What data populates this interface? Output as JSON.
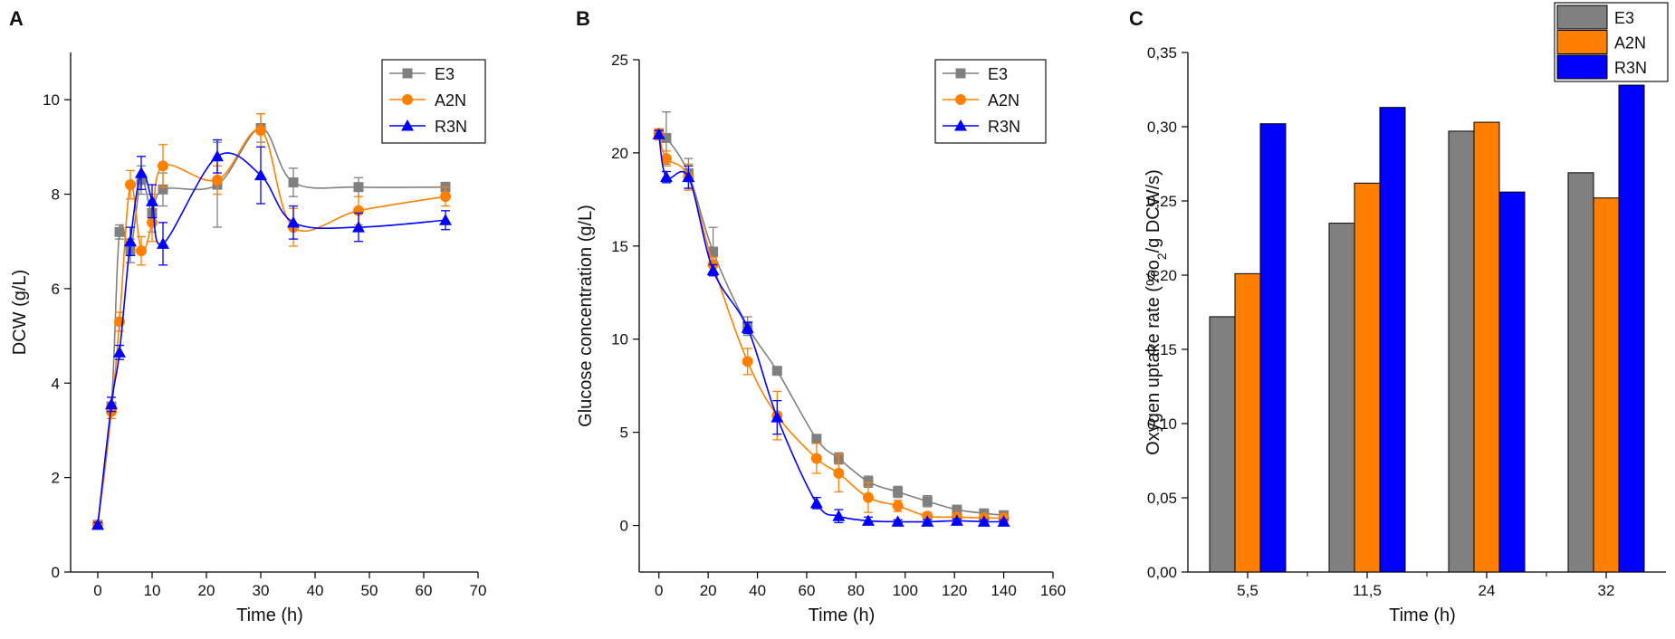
{
  "figure": {
    "panels": [
      "A",
      "B",
      "C"
    ]
  },
  "colors": {
    "E3": "#808080",
    "A2N": "#ff8000",
    "R3N": "#0000ff",
    "E3_bar": "#808080",
    "A2N_bar": "#ff8000",
    "R3N_bar": "#0000ff"
  },
  "chart_data": [
    {
      "panel": "A",
      "type": "line",
      "xlabel": "Time (h)",
      "ylabel": "DCW (g/L)",
      "xlim": [
        -5,
        70
      ],
      "ylim": [
        0,
        11
      ],
      "xticks": [
        "0",
        "10",
        "20",
        "30",
        "40",
        "50",
        "60",
        "70"
      ],
      "yticks": [
        "0",
        "2",
        "4",
        "6",
        "8",
        "10"
      ],
      "legend_position": "top-right",
      "series": [
        {
          "name": "E3",
          "marker": "square",
          "x": [
            0,
            2.5,
            4,
            6,
            8,
            10,
            12,
            22,
            30,
            36,
            48,
            64
          ],
          "y": [
            1.0,
            3.5,
            7.2,
            6.8,
            8.3,
            7.6,
            8.1,
            8.2,
            9.4,
            8.25,
            8.15,
            8.15
          ],
          "err": [
            0.05,
            0.1,
            0.15,
            0.25,
            0.3,
            0.4,
            0.35,
            0.9,
            0.3,
            0.3,
            0.2,
            0.1
          ]
        },
        {
          "name": "A2N",
          "marker": "circle",
          "x": [
            0,
            2.5,
            4,
            6,
            8,
            10,
            12,
            22,
            30,
            36,
            48,
            64
          ],
          "y": [
            1.0,
            3.4,
            5.3,
            8.2,
            6.8,
            7.4,
            8.6,
            8.3,
            9.35,
            7.3,
            7.65,
            7.95
          ],
          "err": [
            0.05,
            0.15,
            0.2,
            0.3,
            0.3,
            0.4,
            0.45,
            0.3,
            0.35,
            0.4,
            0.3,
            0.2
          ]
        },
        {
          "name": "R3N",
          "marker": "triangle",
          "x": [
            0,
            2.5,
            4,
            6,
            8,
            10,
            12,
            22,
            30,
            36,
            48,
            64
          ],
          "y": [
            1.0,
            3.55,
            4.65,
            7.0,
            8.45,
            7.85,
            6.95,
            8.8,
            8.4,
            7.4,
            7.3,
            7.45
          ],
          "err": [
            0.05,
            0.15,
            0.15,
            0.3,
            0.35,
            0.35,
            0.45,
            0.35,
            0.6,
            0.35,
            0.3,
            0.2
          ]
        }
      ]
    },
    {
      "panel": "B",
      "type": "line",
      "xlabel": "Time (h)",
      "ylabel": "Glucose concentration (g/L)",
      "xlim": [
        -8,
        160
      ],
      "ylim": [
        -2.5,
        25
      ],
      "xticks": [
        "0",
        "20",
        "40",
        "60",
        "80",
        "100",
        "120",
        "140",
        "160"
      ],
      "yticks": [
        "0",
        "5",
        "10",
        "15",
        "20",
        "25"
      ],
      "legend_position": "top-right",
      "series": [
        {
          "name": "E3",
          "marker": "square",
          "x": [
            0,
            3,
            12,
            22,
            36,
            48,
            64,
            73,
            85,
            97,
            109,
            121,
            132,
            140
          ],
          "y": [
            21.0,
            20.8,
            18.9,
            14.7,
            10.7,
            8.3,
            4.65,
            3.6,
            2.35,
            1.8,
            1.3,
            0.85,
            0.65,
            0.55
          ],
          "err": [
            0.3,
            1.4,
            0.8,
            1.3,
            0.5,
            0.2,
            0.2,
            0.3,
            0.3,
            0.3,
            0.3,
            0.2,
            0.15,
            0.1
          ]
        },
        {
          "name": "A2N",
          "marker": "circle",
          "x": [
            0,
            3,
            12,
            22,
            36,
            48,
            64,
            73,
            85,
            97,
            109,
            121,
            132,
            140
          ],
          "y": [
            21.0,
            19.7,
            18.7,
            14.0,
            8.8,
            5.9,
            3.6,
            2.8,
            1.5,
            1.05,
            0.5,
            0.45,
            0.4,
            0.4
          ],
          "err": [
            0.3,
            0.4,
            0.7,
            0.4,
            0.7,
            1.3,
            0.8,
            1.0,
            0.8,
            0.3,
            0.2,
            0.2,
            0.2,
            0.2
          ]
        },
        {
          "name": "R3N",
          "marker": "triangle",
          "x": [
            0,
            3,
            12,
            22,
            36,
            48,
            64,
            73,
            85,
            97,
            109,
            121,
            132,
            140
          ],
          "y": [
            21.0,
            18.7,
            18.7,
            13.7,
            10.6,
            5.8,
            1.2,
            0.5,
            0.25,
            0.2,
            0.2,
            0.25,
            0.2,
            0.2
          ],
          "err": [
            0.2,
            0.3,
            0.6,
            0.3,
            0.3,
            0.9,
            0.3,
            0.35,
            0.2,
            0.1,
            0.1,
            0.1,
            0.1,
            0.1
          ]
        }
      ]
    },
    {
      "panel": "C",
      "type": "bar",
      "xlabel": "Time (h)",
      "ylabel": "Oxygen uptake rate (%o2/g DCW/s)",
      "ylabel_main": "Oxygen uptake rate (%o",
      "ylabel_sub": "2",
      "ylabel_tail": "/g DCW/s)",
      "ylim": [
        0,
        0.35
      ],
      "yticks": [
        "0,00",
        "0,05",
        "0,10",
        "0,15",
        "0,20",
        "0,25",
        "0,30",
        "0,35"
      ],
      "categories": [
        "5,5",
        "11,5",
        "24",
        "32"
      ],
      "legend_position": "top-right",
      "series": [
        {
          "name": "E3",
          "values": [
            0.172,
            0.235,
            0.297,
            0.269
          ]
        },
        {
          "name": "A2N",
          "values": [
            0.201,
            0.262,
            0.303,
            0.252
          ]
        },
        {
          "name": "R3N",
          "values": [
            0.302,
            0.313,
            0.256,
            0.328
          ]
        }
      ]
    }
  ]
}
